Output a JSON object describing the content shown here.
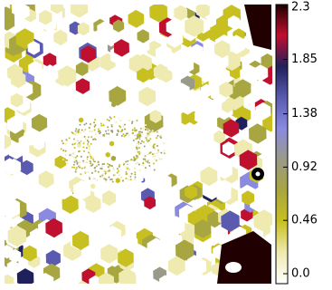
{
  "chart_data": {
    "type": "image",
    "colorbar": {
      "lim": [
        0,
        2.3
      ],
      "ticks": [
        {
          "value": 0,
          "label": "0.0"
        },
        0.46,
        0.92,
        1.38,
        1.85,
        2.3
      ],
      "colormap": [
        "#ffffff",
        "#eeeab0",
        "#c8c020",
        "#a8a640",
        "#9a9a88",
        "#8a8ae0",
        "#5a5ab0",
        "#20205a",
        "#c01030",
        "#200000"
      ]
    }
  }
}
